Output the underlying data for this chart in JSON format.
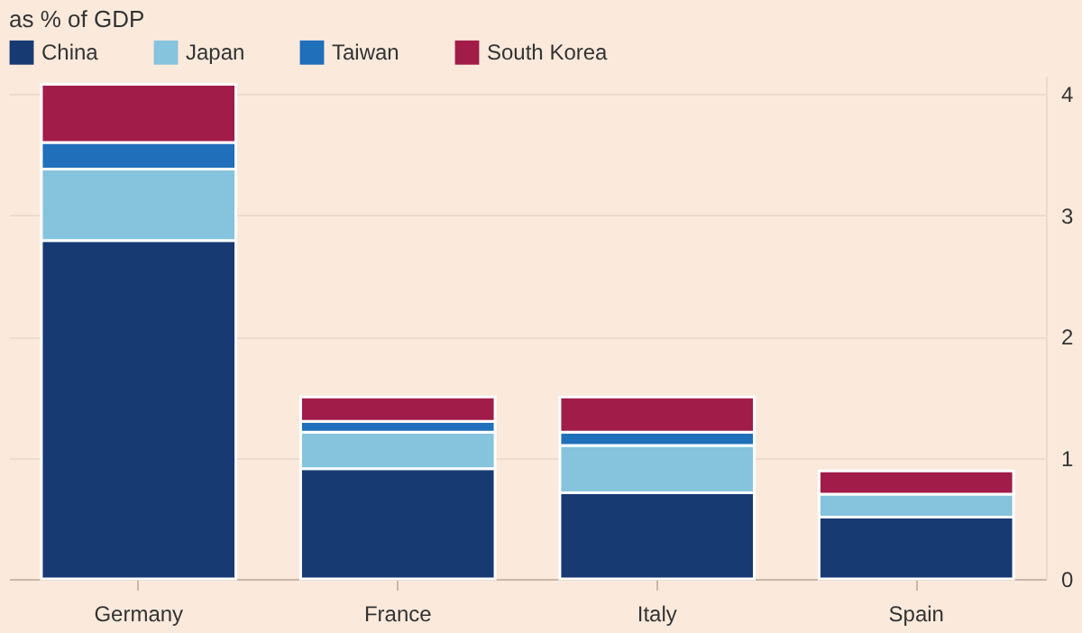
{
  "chart_data": {
    "type": "bar",
    "stacked": true,
    "title": "as % of GDP",
    "categories": [
      "Germany",
      "France",
      "Italy",
      "Spain"
    ],
    "series": [
      {
        "name": "China",
        "color": "#173a73",
        "values": [
          2.79,
          0.91,
          0.71,
          0.51
        ]
      },
      {
        "name": "Japan",
        "color": "#86c3dd",
        "values": [
          0.59,
          0.3,
          0.39,
          0.19
        ]
      },
      {
        "name": "Taiwan",
        "color": "#1f6fba",
        "values": [
          0.22,
          0.09,
          0.11,
          null
        ]
      },
      {
        "name": "South Korea",
        "color": "#a11c48",
        "values": [
          0.48,
          0.2,
          0.29,
          0.19
        ]
      }
    ],
    "ylim": [
      0,
      4.15
    ],
    "yticks": [
      0,
      1,
      2,
      3,
      4
    ],
    "grid": "y",
    "legend": "top left"
  }
}
